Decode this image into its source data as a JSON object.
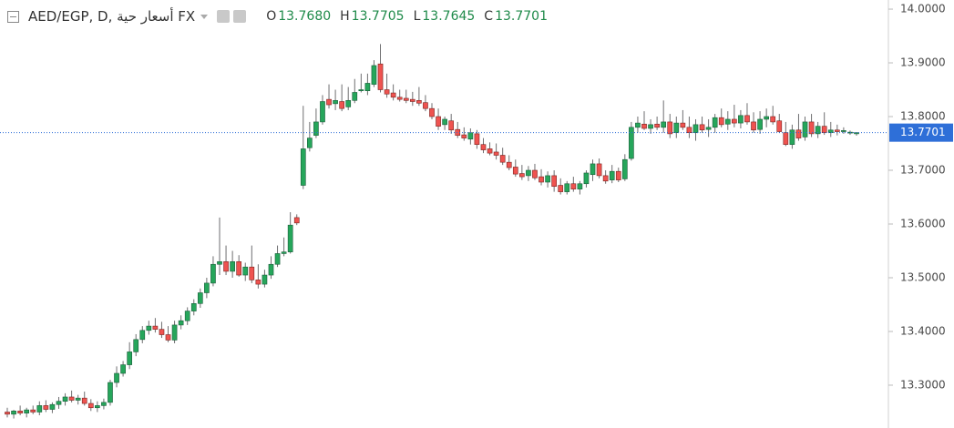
{
  "chart_data": {
    "type": "candlestick",
    "title": "AED/EGP, D, أسعار حية FX",
    "ohlc_legend": [
      {
        "label": "O",
        "value": "13.7680"
      },
      {
        "label": "H",
        "value": "13.7705"
      },
      {
        "label": "L",
        "value": "13.7645"
      },
      {
        "label": "C",
        "value": "13.7701"
      }
    ],
    "ylim": [
      13.2203,
      14.017
    ],
    "yticks": [
      {
        "value": 13.3,
        "label": "13.3000"
      },
      {
        "value": 13.4,
        "label": "13.4000"
      },
      {
        "value": 13.5,
        "label": "13.5000"
      },
      {
        "value": 13.6,
        "label": "13.6000"
      },
      {
        "value": 13.7,
        "label": "13.7000"
      },
      {
        "value": 13.8,
        "label": "13.8000"
      },
      {
        "value": 13.9,
        "label": "13.9000"
      },
      {
        "value": 14.0,
        "label": "14.0000"
      }
    ],
    "grid": false,
    "up_color": "#26a65b",
    "down_color": "#ef5350",
    "wick_color": "#6e6e70",
    "last_price": 13.7701,
    "last_price_color": "#2e6fd8",
    "open": [
      13.25,
      13.246,
      13.252,
      13.248,
      13.254,
      13.25,
      13.262,
      13.255,
      13.264,
      13.27,
      13.278,
      13.272,
      13.276,
      13.266,
      13.258,
      13.262,
      13.268,
      13.305,
      13.322,
      13.338,
      13.362,
      13.385,
      13.402,
      13.41,
      13.404,
      13.394,
      13.384,
      13.412,
      13.42,
      13.438,
      13.452,
      13.472,
      13.49,
      13.525,
      13.53,
      13.512,
      13.53,
      13.505,
      13.52,
      13.496,
      13.488,
      13.505,
      13.525,
      13.545,
      13.548,
      13.612,
      13.672,
      13.742,
      13.765,
      13.79,
      13.832,
      13.824,
      13.828,
      13.818,
      13.83,
      13.848,
      13.848,
      13.86,
      13.898,
      13.85,
      13.844,
      13.836,
      13.834,
      13.832,
      13.83,
      13.826,
      13.815,
      13.8,
      13.785,
      13.792,
      13.776,
      13.766,
      13.758,
      13.768,
      13.748,
      13.74,
      13.734,
      13.728,
      13.715,
      13.706,
      13.694,
      13.69,
      13.7,
      13.688,
      13.678,
      13.69,
      13.672,
      13.66,
      13.675,
      13.665,
      13.675,
      13.692,
      13.712,
      13.69,
      13.682,
      13.698,
      13.684,
      13.722,
      13.78,
      13.786,
      13.778,
      13.786,
      13.78,
      13.79,
      13.77,
      13.788,
      13.78,
      13.77,
      13.785,
      13.776,
      13.78,
      13.798,
      13.786,
      13.795,
      13.788,
      13.802,
      13.79,
      13.776,
      13.795,
      13.8,
      13.792,
      13.77,
      13.748,
      13.775,
      13.762,
      13.79,
      13.768,
      13.782,
      13.77,
      13.775,
      13.772,
      13.77,
      13.768
    ],
    "high": [
      13.258,
      13.254,
      13.262,
      13.258,
      13.262,
      13.27,
      13.272,
      13.268,
      13.278,
      13.285,
      13.29,
      13.282,
      13.288,
      13.274,
      13.27,
      13.275,
      13.31,
      13.335,
      13.345,
      13.38,
      13.395,
      13.41,
      13.42,
      13.425,
      13.418,
      13.41,
      13.42,
      13.43,
      13.445,
      13.46,
      13.48,
      13.5,
      13.54,
      13.612,
      13.56,
      13.55,
      13.542,
      13.528,
      13.56,
      13.525,
      13.515,
      13.54,
      13.56,
      13.575,
      13.622,
      13.618,
      13.82,
      13.79,
      13.815,
      13.84,
      13.86,
      13.85,
      13.86,
      13.855,
      13.87,
      13.88,
      13.88,
      13.905,
      13.935,
      13.88,
      13.86,
      13.85,
      13.85,
      13.846,
      13.855,
      13.84,
      13.825,
      13.815,
      13.8,
      13.805,
      13.79,
      13.78,
      13.778,
      13.775,
      13.76,
      13.752,
      13.75,
      13.742,
      13.728,
      13.72,
      13.71,
      13.708,
      13.712,
      13.702,
      13.698,
      13.7,
      13.685,
      13.68,
      13.688,
      13.68,
      13.7,
      13.72,
      13.722,
      13.7,
      13.71,
      13.705,
      13.73,
      13.79,
      13.8,
      13.81,
      13.795,
      13.8,
      13.83,
      13.805,
      13.8,
      13.812,
      13.8,
      13.795,
      13.8,
      13.795,
      13.805,
      13.815,
      13.81,
      13.822,
      13.812,
      13.825,
      13.808,
      13.81,
      13.815,
      13.82,
      13.805,
      13.79,
      13.785,
      13.805,
      13.8,
      13.805,
      13.79,
      13.808,
      13.79,
      13.785,
      13.78,
      13.774,
      13.7705
    ],
    "low": [
      13.24,
      13.238,
      13.244,
      13.24,
      13.246,
      13.244,
      13.25,
      13.248,
      13.256,
      13.262,
      13.268,
      13.264,
      13.262,
      13.252,
      13.25,
      13.255,
      13.262,
      13.296,
      13.316,
      13.33,
      13.354,
      13.378,
      13.394,
      13.398,
      13.388,
      13.38,
      13.378,
      13.404,
      13.412,
      13.43,
      13.444,
      13.462,
      13.484,
      13.505,
      13.505,
      13.5,
      13.502,
      13.494,
      13.49,
      13.48,
      13.482,
      13.498,
      13.52,
      13.54,
      13.545,
      13.598,
      13.665,
      13.735,
      13.76,
      13.785,
      13.815,
      13.812,
      13.81,
      13.812,
      13.825,
      13.845,
      13.84,
      13.855,
      13.845,
      13.835,
      13.83,
      13.828,
      13.825,
      13.82,
      13.82,
      13.81,
      13.795,
      13.775,
      13.775,
      13.768,
      13.76,
      13.755,
      13.748,
      13.74,
      13.732,
      13.728,
      13.72,
      13.71,
      13.7,
      13.688,
      13.682,
      13.68,
      13.682,
      13.672,
      13.668,
      13.66,
      13.655,
      13.655,
      13.66,
      13.655,
      13.668,
      13.68,
      13.685,
      13.675,
      13.676,
      13.678,
      13.68,
      13.718,
      13.77,
      13.775,
      13.768,
      13.775,
      13.77,
      13.76,
      13.76,
      13.775,
      13.76,
      13.755,
      13.77,
      13.762,
      13.77,
      13.78,
      13.775,
      13.78,
      13.778,
      13.785,
      13.77,
      13.768,
      13.78,
      13.785,
      13.77,
      13.745,
      13.74,
      13.755,
      13.755,
      13.762,
      13.76,
      13.766,
      13.762,
      13.765,
      13.768,
      13.766,
      13.7645
    ],
    "close": [
      13.246,
      13.252,
      13.248,
      13.254,
      13.25,
      13.262,
      13.255,
      13.264,
      13.27,
      13.278,
      13.272,
      13.276,
      13.266,
      13.258,
      13.262,
      13.268,
      13.305,
      13.322,
      13.338,
      13.362,
      13.385,
      13.402,
      13.41,
      13.404,
      13.394,
      13.384,
      13.412,
      13.42,
      13.438,
      13.452,
      13.472,
      13.49,
      13.525,
      13.53,
      13.512,
      13.53,
      13.505,
      13.52,
      13.496,
      13.488,
      13.505,
      13.525,
      13.545,
      13.548,
      13.598,
      13.602,
      13.74,
      13.76,
      13.79,
      13.828,
      13.822,
      13.83,
      13.815,
      13.83,
      13.845,
      13.85,
      13.862,
      13.895,
      13.85,
      13.842,
      13.836,
      13.832,
      13.83,
      13.828,
      13.825,
      13.815,
      13.8,
      13.782,
      13.795,
      13.775,
      13.765,
      13.76,
      13.77,
      13.748,
      13.738,
      13.732,
      13.728,
      13.715,
      13.705,
      13.693,
      13.688,
      13.7,
      13.686,
      13.678,
      13.69,
      13.67,
      13.66,
      13.675,
      13.665,
      13.675,
      13.695,
      13.712,
      13.69,
      13.68,
      13.698,
      13.682,
      13.72,
      13.78,
      13.788,
      13.778,
      13.785,
      13.78,
      13.79,
      13.768,
      13.788,
      13.78,
      13.77,
      13.785,
      13.775,
      13.78,
      13.798,
      13.785,
      13.795,
      13.788,
      13.802,
      13.79,
      13.775,
      13.795,
      13.8,
      13.79,
      13.772,
      13.748,
      13.775,
      13.76,
      13.79,
      13.768,
      13.782,
      13.77,
      13.775,
      13.772,
      13.774,
      13.771,
      13.7701
    ]
  }
}
